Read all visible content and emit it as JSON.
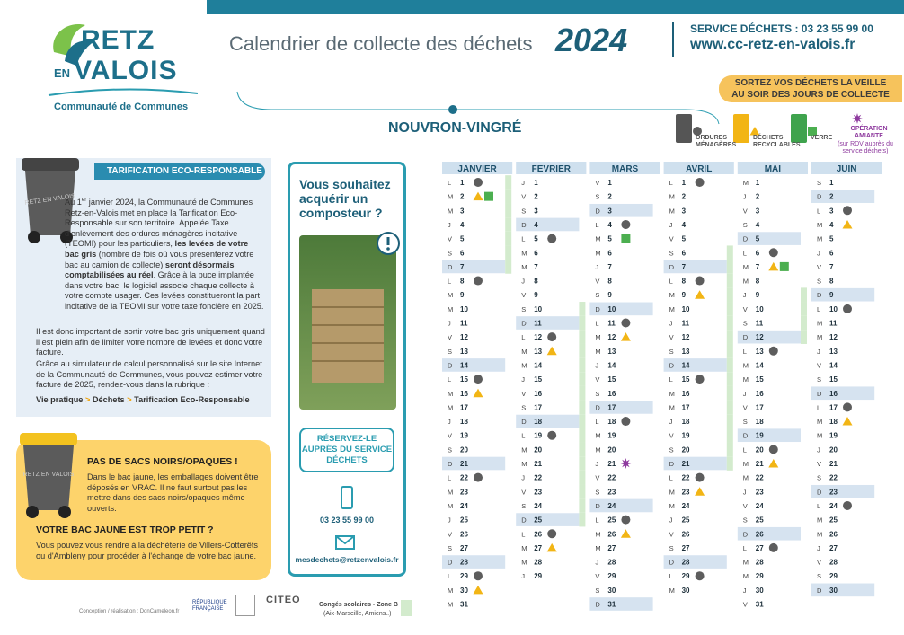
{
  "header": {
    "logo_top": "RETZ",
    "logo_en": "EN",
    "logo_bottom": "VALOIS",
    "logo_sub": "Communauté de Communes",
    "title": "Calendrier de collecte des déchets",
    "year": "2024",
    "phone": "SERVICE DÉCHETS : 03 23 55 99 00",
    "website": "www.cc-retz-en-valois.fr",
    "banner": "SORTEZ VOS DÉCHETS LA VEILLE AU SOIR DES JOURS DE COLLECTE",
    "commune": "NOUVRON-VINGRÉ"
  },
  "legend": [
    {
      "code": "om",
      "label": "ORDURES MÉNAGÈRES",
      "color": "#5d5d5d",
      "shape": "circle"
    },
    {
      "code": "rec",
      "label": "DÉCHETS RECYCLABLES",
      "color": "#f2b515",
      "shape": "triangle"
    },
    {
      "code": "verre",
      "label": "VERRE",
      "color": "#4caf50",
      "shape": "square"
    },
    {
      "code": "amiante",
      "label": "OPÉRATION AMIANTE",
      "note": "(sur RDV auprès du service déchets)",
      "color": "#8e3a9e",
      "shape": "star"
    }
  ],
  "holidays": {
    "code": "vac",
    "label": "Congés scolaires - Zone B",
    "note": "(Aix-Marseille, Amiens..)",
    "color": "#d3ebcd"
  },
  "tarification": {
    "bin_label": "RETZ EN VALOIS",
    "title": "TARIFICATION ECO-RESPONSABLE",
    "p1": [
      "Au 1",
      "er",
      " janvier 2024, la Communauté de Communes Retz-en-Valois met en place la Tarification Eco-Responsable sur son territoire. Appelée Taxe d'enlèvement des ordures ménagères incitative (TEOMI) pour les particuliers, ",
      "les levées de votre bac gris",
      " (nombre de fois où vous présenterez votre bac au camion de collecte) ",
      "seront désormais comptabilisées au réel",
      ". Grâce à la puce implantée dans votre bac, le logiciel associe chaque collecte à votre compte usager. Ces levées constitueront la part incitative de la TEOMI sur votre taxe foncière en 2025."
    ],
    "p2": "Il est donc important de sortir votre bac gris uniquement quand il est plein afin de limiter votre nombre de levées et donc votre facture.",
    "p3": "Grâce au simulateur de calcul personnalisé sur le site Internet de la Communauté de Communes, vous pouvez estimer votre facture de 2025, rendez-vous dans la rubrique :",
    "path": [
      "Vie pratique",
      ">",
      "Déchets",
      ">",
      "Tarification Eco-Responsable"
    ]
  },
  "composteur": {
    "title": "Vous souhaitez acquérir un composteur ?",
    "button": "RÉSERVEZ-LE AUPRÈS DU SERVICE DÉCHETS",
    "phone": "03 23 55 99 00",
    "email": "mesdechets@retzenvalois.fr"
  },
  "bac_jaune": {
    "bin_label": "RETZ EN VALOIS",
    "title1": "PAS DE SACS NOIRS/OPAQUES !",
    "text1": "Dans le bac jaune, les emballages doivent être déposés en VRAC. Il ne faut surtout pas les mettre dans des sacs noirs/opaques même ouverts.",
    "title2": "VOTRE BAC JAUNE EST TROP PETIT ?",
    "text2": "Vous pouvez vous rendre à la déchèterie de Villers-Cotterêts ou d'Ambleny pour procéder à l'échange de votre bac jaune."
  },
  "footer": {
    "credit": "Conception / réalisation : DonCameleon.fr",
    "republique": "RÉPUBLIQUE FRANÇAISE",
    "citeo": "CITEO"
  },
  "calendar": {
    "months": [
      {
        "name": "JANVIER",
        "days": [
          [
            "L",
            1,
            "om",
            "vac"
          ],
          [
            "M",
            2,
            "rec",
            "verre",
            "vac"
          ],
          [
            "M",
            3,
            "vac"
          ],
          [
            "J",
            4,
            "vac"
          ],
          [
            "V",
            5,
            "vac"
          ],
          [
            "S",
            6,
            "vac"
          ],
          [
            "D",
            7,
            "vac"
          ],
          [
            "L",
            8,
            "om"
          ],
          [
            "M",
            9
          ],
          [
            "M",
            10
          ],
          [
            "J",
            11
          ],
          [
            "V",
            12
          ],
          [
            "S",
            13
          ],
          [
            "D",
            14
          ],
          [
            "L",
            15,
            "om"
          ],
          [
            "M",
            16,
            "rec"
          ],
          [
            "M",
            17
          ],
          [
            "J",
            18
          ],
          [
            "V",
            19
          ],
          [
            "S",
            20
          ],
          [
            "D",
            21
          ],
          [
            "L",
            22,
            "om"
          ],
          [
            "M",
            23
          ],
          [
            "M",
            24
          ],
          [
            "J",
            25
          ],
          [
            "V",
            26
          ],
          [
            "S",
            27
          ],
          [
            "D",
            28
          ],
          [
            "L",
            29,
            "om"
          ],
          [
            "M",
            30,
            "rec"
          ],
          [
            "M",
            31
          ]
        ]
      },
      {
        "name": "FEVRIER",
        "days": [
          [
            "J",
            1
          ],
          [
            "V",
            2
          ],
          [
            "S",
            3
          ],
          [
            "D",
            4
          ],
          [
            "L",
            5,
            "om"
          ],
          [
            "M",
            6
          ],
          [
            "M",
            7
          ],
          [
            "J",
            8
          ],
          [
            "V",
            9
          ],
          [
            "S",
            10,
            "vac"
          ],
          [
            "D",
            11,
            "vac"
          ],
          [
            "L",
            12,
            "om",
            "vac"
          ],
          [
            "M",
            13,
            "rec",
            "vac"
          ],
          [
            "M",
            14,
            "vac"
          ],
          [
            "J",
            15,
            "vac"
          ],
          [
            "V",
            16,
            "vac"
          ],
          [
            "S",
            17,
            "vac"
          ],
          [
            "D",
            18,
            "vac"
          ],
          [
            "L",
            19,
            "om",
            "vac"
          ],
          [
            "M",
            20,
            "vac"
          ],
          [
            "M",
            21,
            "vac"
          ],
          [
            "J",
            22,
            "vac"
          ],
          [
            "V",
            23,
            "vac"
          ],
          [
            "S",
            24,
            "vac"
          ],
          [
            "D",
            25,
            "vac"
          ],
          [
            "L",
            26,
            "om"
          ],
          [
            "M",
            27,
            "rec"
          ],
          [
            "M",
            28
          ],
          [
            "J",
            29
          ]
        ]
      },
      {
        "name": "MARS",
        "days": [
          [
            "V",
            1
          ],
          [
            "S",
            2
          ],
          [
            "D",
            3
          ],
          [
            "L",
            4,
            "om"
          ],
          [
            "M",
            5,
            "verre"
          ],
          [
            "M",
            6
          ],
          [
            "J",
            7
          ],
          [
            "V",
            8
          ],
          [
            "S",
            9
          ],
          [
            "D",
            10
          ],
          [
            "L",
            11,
            "om"
          ],
          [
            "M",
            12,
            "rec"
          ],
          [
            "M",
            13
          ],
          [
            "J",
            14
          ],
          [
            "V",
            15
          ],
          [
            "S",
            16
          ],
          [
            "D",
            17
          ],
          [
            "L",
            18,
            "om"
          ],
          [
            "M",
            19
          ],
          [
            "M",
            20
          ],
          [
            "J",
            21,
            "amiante"
          ],
          [
            "V",
            22
          ],
          [
            "S",
            23
          ],
          [
            "D",
            24
          ],
          [
            "L",
            25,
            "om"
          ],
          [
            "M",
            26,
            "rec"
          ],
          [
            "M",
            27
          ],
          [
            "J",
            28
          ],
          [
            "V",
            29
          ],
          [
            "S",
            30
          ],
          [
            "D",
            31
          ]
        ]
      },
      {
        "name": "AVRIL",
        "days": [
          [
            "L",
            1,
            "om"
          ],
          [
            "M",
            2
          ],
          [
            "M",
            3
          ],
          [
            "J",
            4
          ],
          [
            "V",
            5
          ],
          [
            "S",
            6,
            "vac"
          ],
          [
            "D",
            7,
            "vac"
          ],
          [
            "L",
            8,
            "om",
            "vac"
          ],
          [
            "M",
            9,
            "rec",
            "vac"
          ],
          [
            "M",
            10,
            "vac"
          ],
          [
            "J",
            11,
            "vac"
          ],
          [
            "V",
            12,
            "vac"
          ],
          [
            "S",
            13,
            "vac"
          ],
          [
            "D",
            14,
            "vac"
          ],
          [
            "L",
            15,
            "om",
            "vac"
          ],
          [
            "M",
            16,
            "vac"
          ],
          [
            "M",
            17,
            "vac"
          ],
          [
            "J",
            18,
            "vac"
          ],
          [
            "V",
            19,
            "vac"
          ],
          [
            "S",
            20,
            "vac"
          ],
          [
            "D",
            21,
            "vac"
          ],
          [
            "L",
            22,
            "om"
          ],
          [
            "M",
            23,
            "rec"
          ],
          [
            "M",
            24
          ],
          [
            "J",
            25
          ],
          [
            "V",
            26
          ],
          [
            "S",
            27
          ],
          [
            "D",
            28
          ],
          [
            "L",
            29,
            "om"
          ],
          [
            "M",
            30
          ]
        ]
      },
      {
        "name": "MAI",
        "days": [
          [
            "M",
            1
          ],
          [
            "J",
            2
          ],
          [
            "V",
            3
          ],
          [
            "S",
            4
          ],
          [
            "D",
            5
          ],
          [
            "L",
            6,
            "om"
          ],
          [
            "M",
            7,
            "rec",
            "verre"
          ],
          [
            "M",
            8
          ],
          [
            "J",
            9,
            "vac"
          ],
          [
            "V",
            10,
            "vac"
          ],
          [
            "S",
            11,
            "vac"
          ],
          [
            "D",
            12,
            "vac"
          ],
          [
            "L",
            13,
            "om"
          ],
          [
            "M",
            14
          ],
          [
            "M",
            15
          ],
          [
            "J",
            16
          ],
          [
            "V",
            17
          ],
          [
            "S",
            18
          ],
          [
            "D",
            19
          ],
          [
            "L",
            20,
            "om"
          ],
          [
            "M",
            21,
            "rec"
          ],
          [
            "M",
            22
          ],
          [
            "J",
            23
          ],
          [
            "V",
            24
          ],
          [
            "S",
            25
          ],
          [
            "D",
            26
          ],
          [
            "L",
            27,
            "om"
          ],
          [
            "M",
            28
          ],
          [
            "M",
            29
          ],
          [
            "J",
            30
          ],
          [
            "V",
            31
          ]
        ]
      },
      {
        "name": "JUIN",
        "days": [
          [
            "S",
            1
          ],
          [
            "D",
            2
          ],
          [
            "L",
            3,
            "om"
          ],
          [
            "M",
            4,
            "rec"
          ],
          [
            "M",
            5
          ],
          [
            "J",
            6
          ],
          [
            "V",
            7
          ],
          [
            "S",
            8
          ],
          [
            "D",
            9
          ],
          [
            "L",
            10,
            "om"
          ],
          [
            "M",
            11
          ],
          [
            "M",
            12
          ],
          [
            "J",
            13
          ],
          [
            "V",
            14
          ],
          [
            "S",
            15
          ],
          [
            "D",
            16
          ],
          [
            "L",
            17,
            "om"
          ],
          [
            "M",
            18,
            "rec"
          ],
          [
            "M",
            19
          ],
          [
            "J",
            20
          ],
          [
            "V",
            21
          ],
          [
            "S",
            22
          ],
          [
            "D",
            23
          ],
          [
            "L",
            24,
            "om"
          ],
          [
            "M",
            25
          ],
          [
            "M",
            26
          ],
          [
            "J",
            27
          ],
          [
            "V",
            28
          ],
          [
            "S",
            29
          ],
          [
            "D",
            30
          ]
        ]
      }
    ]
  }
}
